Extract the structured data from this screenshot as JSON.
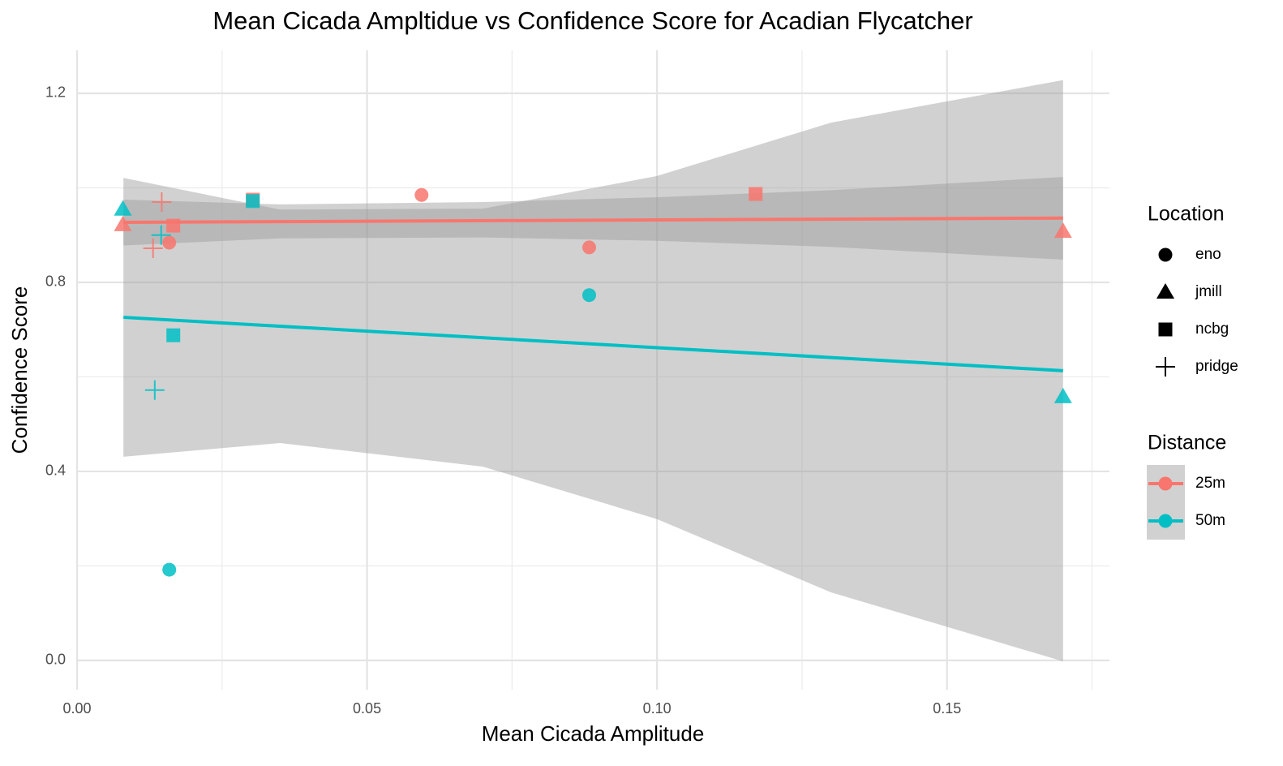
{
  "chart_data": {
    "type": "scatter",
    "title": "Mean Cicada Ampltidue vs Confidence Score for Acadian Flycatcher",
    "x_label": "Mean Cicada Amplitude",
    "y_label": "Confidence Score",
    "xlim": [
      0,
      0.178
    ],
    "ylim": [
      -0.062,
      1.291
    ],
    "xticks": [
      {
        "value": 0,
        "label": "0.00"
      },
      {
        "value": 0.05,
        "label": "0.05"
      },
      {
        "value": 0.1,
        "label": "0.10"
      },
      {
        "value": 0.15,
        "label": "0.15"
      }
    ],
    "yticks": [
      {
        "value": 0,
        "label": "0.0"
      },
      0.4,
      0.8,
      1.2
    ],
    "xminor": [
      0.025,
      0.075,
      0.125,
      0.175
    ],
    "yminor": [
      0.2,
      0.6,
      1.0
    ],
    "grid": true,
    "shape_legend_title": "Location",
    "color_legend_title": "Distance",
    "locations": [
      "eno",
      "jmill",
      "ncbg",
      "pridge"
    ],
    "series": [
      {
        "name": "25m",
        "color": "#F8766D",
        "x": [
          0.0079,
          0.0146,
          0.0131,
          0.0159,
          0.0166,
          0.0303,
          0.0594,
          0.0883,
          0.117,
          0.17
        ],
        "values": [
          0.922,
          0.97,
          0.872,
          0.884,
          0.92,
          0.975,
          0.985,
          0.874,
          0.987,
          0.908
        ],
        "location": [
          "jmill",
          "pridge",
          "pridge",
          "eno",
          "ncbg",
          "ncbg",
          "eno",
          "eno",
          "ncbg",
          "jmill"
        ],
        "fit": {
          "x": [
            0.008,
            0.17
          ],
          "y": [
            0.927,
            0.936
          ]
        },
        "band": {
          "x": [
            0.008,
            0.035,
            0.07,
            0.1,
            0.13,
            0.17
          ],
          "upper": [
            0.975,
            0.965,
            0.97,
            0.98,
            0.995,
            1.023
          ],
          "lower": [
            0.878,
            0.893,
            0.895,
            0.888,
            0.875,
            0.848
          ]
        }
      },
      {
        "name": "50m",
        "color": "#00BFC4",
        "x": [
          0.0079,
          0.0145,
          0.0134,
          0.0166,
          0.0159,
          0.0303,
          0.0883,
          0.17
        ],
        "values": [
          0.955,
          0.9,
          0.572,
          0.688,
          0.192,
          0.972,
          0.773,
          0.558
        ],
        "location": [
          "jmill",
          "pridge",
          "pridge",
          "ncbg",
          "eno",
          "ncbg",
          "eno",
          "jmill"
        ],
        "fit": {
          "x": [
            0.008,
            0.17
          ],
          "y": [
            0.726,
            0.613
          ]
        },
        "band": {
          "x": [
            0.008,
            0.035,
            0.07,
            0.1,
            0.13,
            0.17
          ],
          "upper": [
            1.021,
            0.954,
            0.956,
            1.025,
            1.138,
            1.228
          ],
          "lower": [
            0.431,
            0.46,
            0.41,
            0.299,
            0.144,
            -0.002
          ]
        }
      }
    ]
  }
}
